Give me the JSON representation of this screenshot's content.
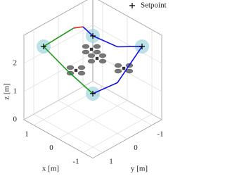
{
  "chart_data": {
    "type": "line3d",
    "xlabel": "x [m]",
    "ylabel": "y [m]",
    "zlabel": "z [m]",
    "xlim": [
      -1.4,
      1.4
    ],
    "ylim": [
      -1.4,
      1.4
    ],
    "zlim": [
      0,
      3
    ],
    "xticks": [
      1,
      0,
      -1
    ],
    "yticks": [
      1,
      0,
      -1
    ],
    "zticks": [
      0,
      1,
      2
    ],
    "grid": true,
    "legend": "upper right",
    "setpoints": {
      "name": "Setpoint",
      "color": "#000000",
      "halo": "#9fd4dc",
      "x": [
        1,
        -1,
        1,
        -1
      ],
      "y": [
        1,
        -1,
        -1,
        1
      ],
      "z": [
        2.6,
        2.6,
        2,
        1.9
      ]
    },
    "series": [
      {
        "color": "#1a9a1a",
        "x": [
          1,
          0,
          -1
        ],
        "y": [
          1,
          1,
          1
        ],
        "z": [
          2.6,
          2.2,
          1.9
        ]
      },
      {
        "color": "#1a9a1a",
        "x": [
          1,
          0.82,
          0.75
        ],
        "y": [
          1,
          0.67,
          0.03
        ],
        "z": [
          2.6,
          2.8,
          2.9
        ]
      },
      {
        "color": "#e0201a",
        "x": [
          0.75,
          0.61
        ],
        "y": [
          0.03,
          -0.21
        ],
        "z": [
          2.9,
          2.9
        ]
      },
      {
        "color": "#1010e0",
        "x": [
          0.61,
          1,
          0,
          -1,
          -1,
          -1
        ],
        "y": [
          -0.21,
          -1,
          -1,
          -1,
          0,
          1
        ],
        "z": [
          2.9,
          2,
          2.1,
          2.6,
          1.8,
          1.9
        ]
      }
    ]
  }
}
